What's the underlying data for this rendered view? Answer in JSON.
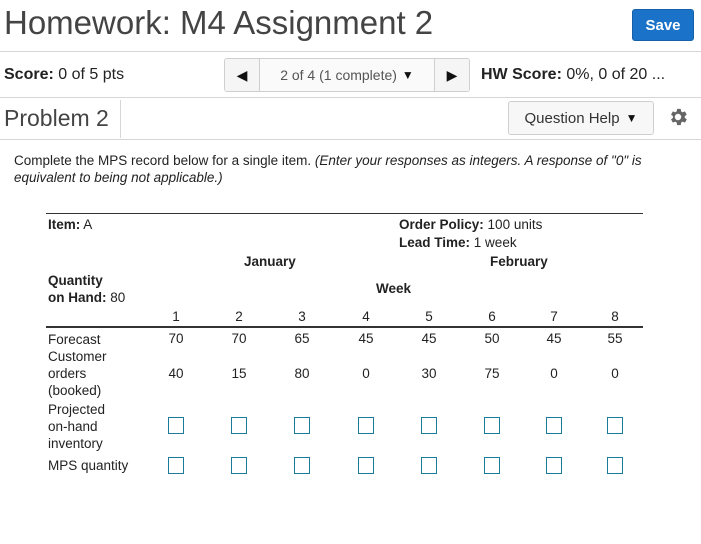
{
  "header": {
    "title": "Homework: M4 Assignment 2",
    "save_label": "Save"
  },
  "scorebar": {
    "score_label": "Score:",
    "score_value": "0 of 5 pts",
    "nav_text": "2 of 4 (1 complete)",
    "hw_label": "HW Score:",
    "hw_value": "0%, 0 of 20 ..."
  },
  "problem": {
    "title": "Problem 2",
    "help_label": "Question Help"
  },
  "instructions": {
    "text": "Complete the MPS record below for a single item.",
    "hint": "(Enter your responses as integers. A response of \"0\" is equivalent to being not applicable.)"
  },
  "mps": {
    "item_label": "Item:",
    "item_value": "A",
    "policy_label": "Order Policy:",
    "policy_value": "100 units",
    "lead_label": "Lead Time:",
    "lead_value": "1 week",
    "month1": "January",
    "month2": "February",
    "qoh_label1": "Quantity",
    "qoh_label2": "on Hand:",
    "qoh_value": "80",
    "week_label": "Week",
    "weeks": [
      "1",
      "2",
      "3",
      "4",
      "5",
      "6",
      "7",
      "8"
    ],
    "forecast_label": "Forecast",
    "forecast": [
      "70",
      "70",
      "65",
      "45",
      "45",
      "50",
      "45",
      "55"
    ],
    "orders_label": [
      "Customer",
      "orders",
      "(booked)"
    ],
    "orders": [
      "40",
      "15",
      "80",
      "0",
      "30",
      "75",
      "0",
      "0"
    ],
    "poh_label": [
      "Projected",
      "on-hand",
      "inventory"
    ],
    "mps_label": "MPS quantity"
  },
  "colors": {
    "save_button": "#1a73c8",
    "input_border": "#1a7a9a"
  },
  "icons": [
    "left-arrow-icon",
    "right-arrow-icon",
    "caret-down-icon",
    "gear-icon"
  ]
}
